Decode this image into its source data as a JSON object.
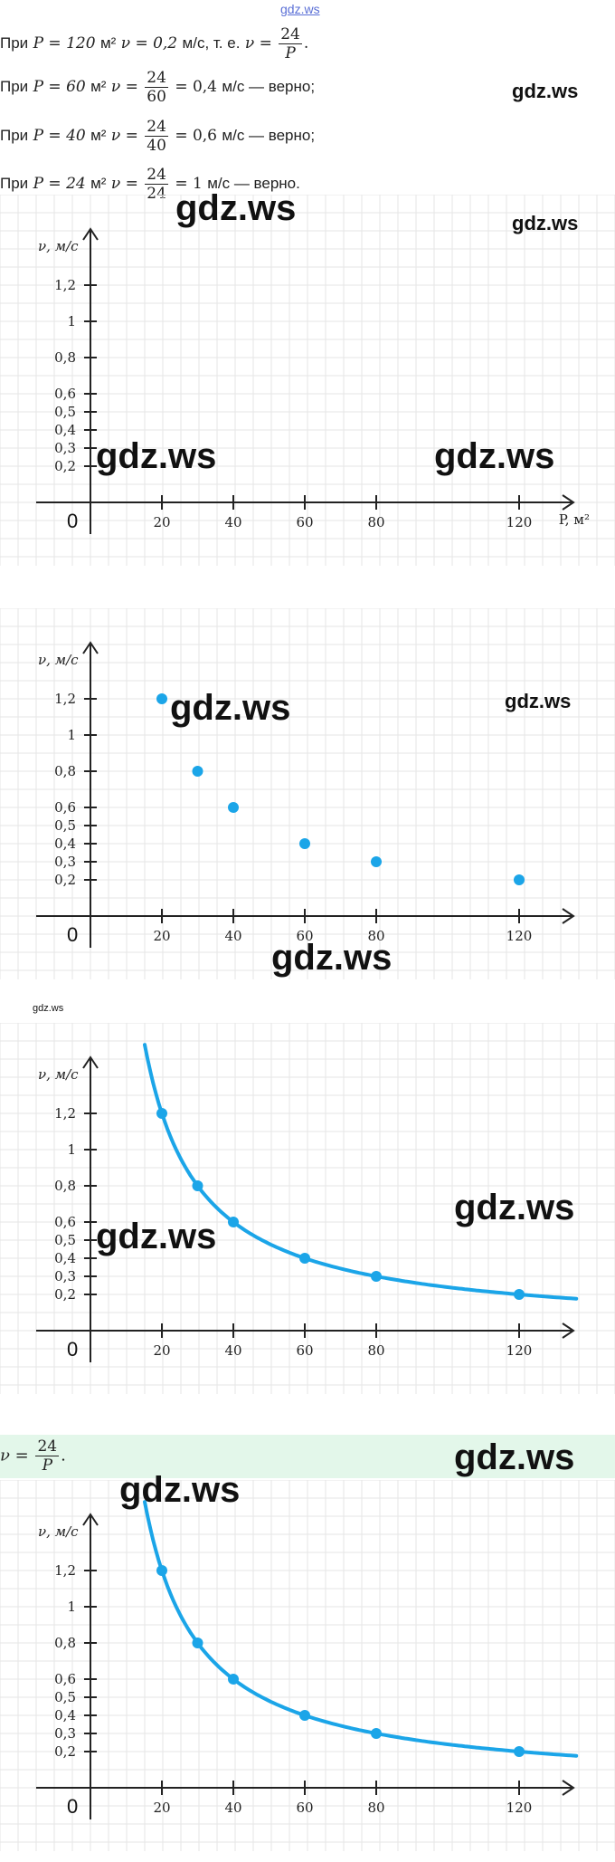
{
  "header": {
    "watermark": "gdz.ws"
  },
  "text_lines": [
    {
      "prefix": "При",
      "p": "P = 120",
      "unit": "м²",
      "v": "ν = 0,2",
      "tail": "м/с, т. е.",
      "v2": "ν =",
      "num": "24",
      "den": "P",
      "end": "."
    },
    {
      "prefix": "При",
      "p": "P = 60",
      "unit": "м²",
      "v": "ν =",
      "num": "24",
      "den": "60",
      "eq": "= 0,4",
      "tail": "м/с — верно;"
    },
    {
      "prefix": "При",
      "p": "P = 40",
      "unit": "м²",
      "v": "ν =",
      "num": "24",
      "den": "40",
      "eq": "= 0,6",
      "tail": "м/с — верно;"
    },
    {
      "prefix": "При",
      "p": "P = 24",
      "unit": "м²",
      "v": "ν =",
      "num": "24",
      "den": "24",
      "eq": "= 1",
      "tail": "м/с — верно."
    }
  ],
  "formula": {
    "lhs": "ν =",
    "num": "24",
    "den": "P",
    "end": "."
  },
  "watermarks": [
    "gdz.ws",
    "gdz.ws",
    "gdz.ws",
    "gdz.ws",
    "gdz.ws",
    "gdz.ws",
    "gdz.ws",
    "gdz.ws",
    "gdz.ws",
    "gdz.ws",
    "gdz.ws",
    "gdz.ws",
    "gdz.ws"
  ],
  "colors": {
    "accent": "#1ba5e8",
    "grid": "#e6e6e6",
    "axis": "#222222",
    "formula_bg": "#e3f7ea"
  },
  "chart_data": [
    {
      "type": "line",
      "ylabel": "ν, м/с",
      "xlabel": "P, м²",
      "origin_label": "0",
      "x_ticks": [
        20,
        40,
        60,
        80,
        120
      ],
      "x_tick_labels": [
        "20",
        "40",
        "60",
        "80",
        "120"
      ],
      "y_ticks": [
        0.2,
        0.3,
        0.4,
        0.5,
        0.6,
        0.8,
        1,
        1.2
      ],
      "y_tick_labels": [
        "0,2",
        "0,3",
        "0,4",
        "0,5",
        "0,6",
        "0,8",
        "1",
        "1,2"
      ],
      "points": [],
      "curve": false
    },
    {
      "type": "scatter",
      "ylabel": "ν, м/с",
      "origin_label": "0",
      "x_ticks": [
        20,
        40,
        60,
        80,
        120
      ],
      "x_tick_labels": [
        "20",
        "40",
        "60",
        "80",
        "120"
      ],
      "y_ticks": [
        0.2,
        0.3,
        0.4,
        0.5,
        0.6,
        0.8,
        1,
        1.2
      ],
      "y_tick_labels": [
        "0,2",
        "0,3",
        "0,4",
        "0,5",
        "0,6",
        "0,8",
        "1",
        "1,2"
      ],
      "points": [
        [
          20,
          1.2
        ],
        [
          30,
          0.8
        ],
        [
          40,
          0.6
        ],
        [
          60,
          0.4
        ],
        [
          80,
          0.3
        ],
        [
          120,
          0.2
        ]
      ],
      "curve": false
    },
    {
      "type": "line",
      "ylabel": "ν, м/с",
      "origin_label": "0",
      "x_ticks": [
        20,
        40,
        60,
        80,
        120
      ],
      "x_tick_labels": [
        "20",
        "40",
        "60",
        "80",
        "120"
      ],
      "y_ticks": [
        0.2,
        0.3,
        0.4,
        0.5,
        0.6,
        0.8,
        1,
        1.2
      ],
      "y_tick_labels": [
        "0,2",
        "0,3",
        "0,4",
        "0,5",
        "0,6",
        "0,8",
        "1",
        "1,2"
      ],
      "points": [
        [
          20,
          1.2
        ],
        [
          30,
          0.8
        ],
        [
          40,
          0.6
        ],
        [
          60,
          0.4
        ],
        [
          80,
          0.3
        ],
        [
          120,
          0.2
        ]
      ],
      "curve": true,
      "function": "24/P"
    },
    {
      "type": "line",
      "ylabel": "ν, м/с",
      "origin_label": "0",
      "x_ticks": [
        20,
        40,
        60,
        80,
        120
      ],
      "x_tick_labels": [
        "20",
        "40",
        "60",
        "80",
        "120"
      ],
      "y_ticks": [
        0.2,
        0.3,
        0.4,
        0.5,
        0.6,
        0.8,
        1,
        1.2
      ],
      "y_tick_labels": [
        "0,2",
        "0,3",
        "0,4",
        "0,5",
        "0,6",
        "0,8",
        "1",
        "1,2"
      ],
      "points": [
        [
          20,
          1.2
        ],
        [
          30,
          0.8
        ],
        [
          40,
          0.6
        ],
        [
          60,
          0.4
        ],
        [
          80,
          0.3
        ],
        [
          120,
          0.2
        ]
      ],
      "curve": true,
      "function": "24/P"
    }
  ]
}
